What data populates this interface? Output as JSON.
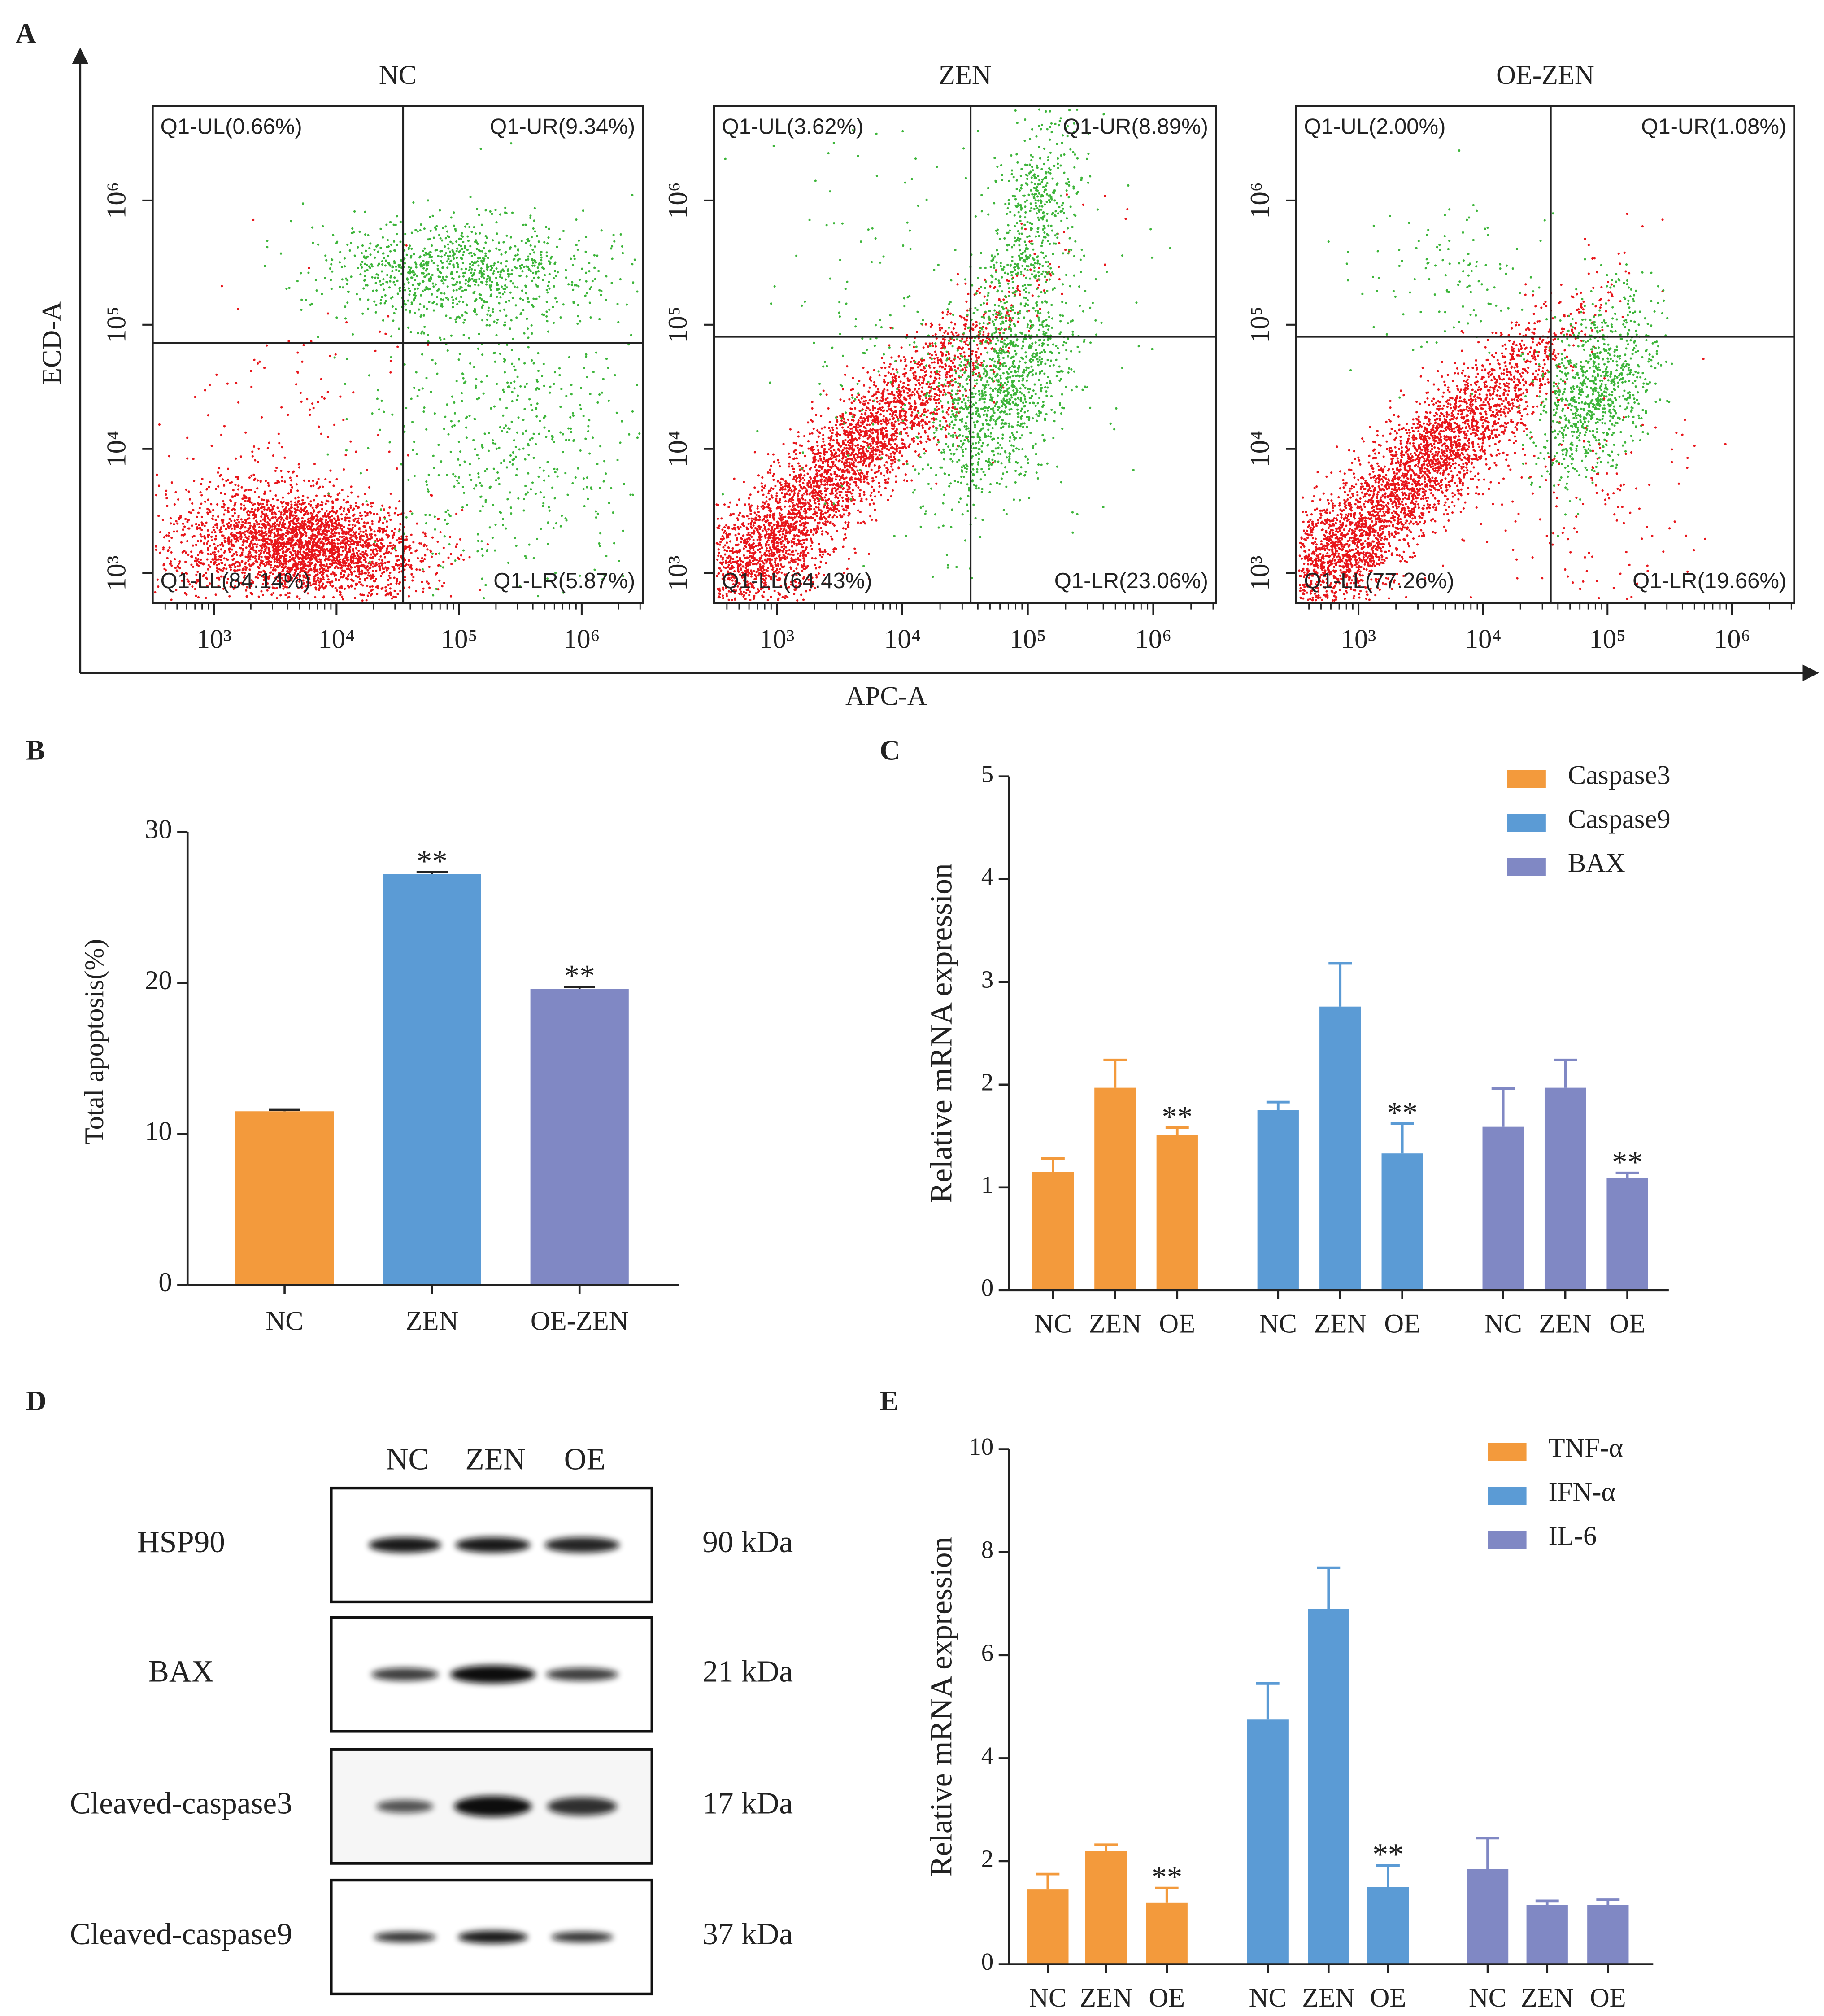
{
  "chart_data": [
    {
      "panel": "A",
      "type": "flow-scatter",
      "x_label": "APC-A",
      "y_label": "ECD-A",
      "xscale": "log",
      "yscale": "log",
      "xlim": [
        316,
        3162278
      ],
      "ylim": [
        575,
        5750000
      ],
      "xticks": [
        {
          "value": 1000,
          "label": "10³"
        },
        {
          "value": 10000,
          "label": "10⁴"
        },
        {
          "value": 100000,
          "label": "10⁵"
        },
        {
          "value": 1000000,
          "label": "10⁶"
        }
      ],
      "yticks": [
        {
          "value": 1000,
          "label": "10³"
        },
        {
          "value": 10000,
          "label": "10⁴"
        },
        {
          "value": 100000,
          "label": "10⁵"
        },
        {
          "value": 1000000,
          "label": "10⁶"
        }
      ],
      "plots": [
        {
          "title": "NC",
          "gate_x": 35000,
          "gate_y": 71000,
          "quadrant_labels": [
            "Q1-UL(0.66%)",
            "Q1-UR(9.34%)",
            "Q1-LL(84.14%)",
            "Q1-LR(5.87%)"
          ]
        },
        {
          "title": "ZEN",
          "gate_x": 35000,
          "gate_y": 80000,
          "quadrant_labels": [
            "Q1-UL(3.62%)",
            "Q1-UR(8.89%)",
            "Q1-LL(64.43%)",
            "Q1-LR(23.06%)"
          ]
        },
        {
          "title": "OE-ZEN",
          "gate_x": 35000,
          "gate_y": 80000,
          "quadrant_labels": [
            "Q1-UL(2.00%)",
            "Q1-UR(1.08%)",
            "Q1-LL(77.26%)",
            "Q1-LR(19.66%)"
          ]
        }
      ]
    },
    {
      "panel": "B",
      "type": "bar",
      "categories": [
        "NC",
        "ZEN",
        "OE-ZEN"
      ],
      "values": [
        11.5,
        27.2,
        19.6
      ],
      "errors": [
        0.1,
        0.15,
        0.15
      ],
      "colors": [
        "#f39a3c",
        "#5b9bd5",
        "#8088c4"
      ],
      "significance": [
        null,
        "**",
        "**"
      ],
      "y_label": "Total apoptosis(%)",
      "ylim": [
        0,
        30
      ],
      "yticks": [
        0,
        10,
        20,
        30
      ]
    },
    {
      "panel": "C",
      "type": "grouped-bar",
      "categories": [
        "NC",
        "ZEN",
        "OE"
      ],
      "y_label": "Relative mRNA expression",
      "legend": "upper right",
      "ylim": [
        0,
        5
      ],
      "yticks": [
        0,
        1,
        2,
        3,
        4,
        5
      ],
      "series": [
        {
          "name": "Caspase3",
          "color": "#f39a3c",
          "values": [
            1.15,
            1.97,
            1.51
          ],
          "errors": [
            0.13,
            0.27,
            0.07
          ],
          "significance": [
            null,
            null,
            "**"
          ]
        },
        {
          "name": "Caspase9",
          "color": "#5b9bd5",
          "values": [
            1.75,
            2.76,
            1.33
          ],
          "errors": [
            0.08,
            0.42,
            0.29
          ],
          "significance": [
            null,
            null,
            "**"
          ]
        },
        {
          "name": "BAX",
          "color": "#8088c4",
          "values": [
            1.59,
            1.97,
            1.09
          ],
          "errors": [
            0.37,
            0.27,
            0.05
          ],
          "significance": [
            null,
            null,
            "**"
          ]
        }
      ]
    },
    {
      "panel": "E",
      "type": "grouped-bar",
      "categories": [
        "NC",
        "ZEN",
        "OE"
      ],
      "y_label": "Relative mRNA expression",
      "legend": "upper right",
      "ylim": [
        0,
        10
      ],
      "yticks": [
        0,
        2,
        4,
        6,
        8,
        10
      ],
      "series": [
        {
          "name": "TNF-α",
          "color": "#f39a3c",
          "values": [
            1.45,
            2.2,
            1.2
          ],
          "errors": [
            0.3,
            0.12,
            0.28
          ],
          "significance": [
            null,
            null,
            "**"
          ]
        },
        {
          "name": "IFN-α",
          "color": "#5b9bd5",
          "values": [
            4.75,
            6.9,
            1.5
          ],
          "errors": [
            0.7,
            0.8,
            0.42
          ],
          "significance": [
            null,
            null,
            "**"
          ]
        },
        {
          "name": "IL-6",
          "color": "#8088c4",
          "values": [
            1.85,
            1.15,
            1.15
          ],
          "errors": [
            0.6,
            0.08,
            0.1
          ],
          "significance": [
            null,
            null,
            null
          ]
        }
      ]
    }
  ],
  "blot": {
    "panel": "D",
    "lanes": [
      "NC",
      "ZEN",
      "OE"
    ],
    "rows": [
      {
        "protein": "HSP90",
        "size": "90 kDa"
      },
      {
        "protein": "BAX",
        "size": "21 kDa"
      },
      {
        "protein": "Cleaved-caspase3",
        "size": "17 kDa"
      },
      {
        "protein": "Cleaved-caspase9",
        "size": "37 kDa"
      }
    ]
  }
}
